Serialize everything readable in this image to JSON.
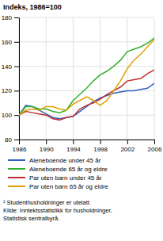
{
  "chart_data": {
    "type": "line",
    "title": "Indeks, 1986=100",
    "x": [
      1986,
      1987,
      1988,
      1989,
      1990,
      1991,
      1992,
      1993,
      1994,
      1995,
      1996,
      1997,
      1998,
      1999,
      2000,
      2001,
      2002,
      2003,
      2004,
      2005,
      2006
    ],
    "series": [
      {
        "name": "Aleneboende under 45 år",
        "color": "#3060c0",
        "values": [
          100,
          108,
          107,
          104,
          101,
          98,
          97,
          98,
          99,
          103,
          107,
          111,
          114,
          116,
          118,
          119,
          120,
          120,
          121,
          122,
          126
        ]
      },
      {
        "name": "Aleneboende 65 år og eldre",
        "color": "#30b030",
        "values": [
          100,
          107,
          107,
          105,
          105,
          103,
          102,
          104,
          112,
          117,
          122,
          128,
          133,
          136,
          140,
          145,
          152,
          154,
          156,
          159,
          163
        ]
      },
      {
        "name": "Par uten barn under 45 år",
        "color": "#c03030",
        "values": [
          100,
          103,
          102,
          101,
          100,
          97,
          96,
          98,
          99,
          105,
          108,
          110,
          113,
          117,
          120,
          123,
          128,
          129,
          130,
          134,
          137
        ]
      },
      {
        "name": "Par uten barn 65 år og eldre",
        "color": "#e0a000",
        "values": [
          100,
          104,
          105,
          104,
          107,
          107,
          105,
          104,
          109,
          112,
          115,
          112,
          108,
          112,
          120,
          128,
          138,
          145,
          150,
          156,
          162
        ]
      }
    ],
    "xlim": [
      1986,
      2006
    ],
    "xticks": [
      1986,
      1990,
      1994,
      1998,
      2002,
      2006
    ],
    "ylim": [
      80,
      180
    ],
    "yticks": [
      80,
      100,
      120,
      140,
      160,
      180
    ],
    "grid": true,
    "legend": "bottom",
    "footnote": "¹ Studenthusholdninger er utelatt.\nKilde: Inntektsstatistikk for husholdninger,\nStatistisk sentralbyrå."
  }
}
